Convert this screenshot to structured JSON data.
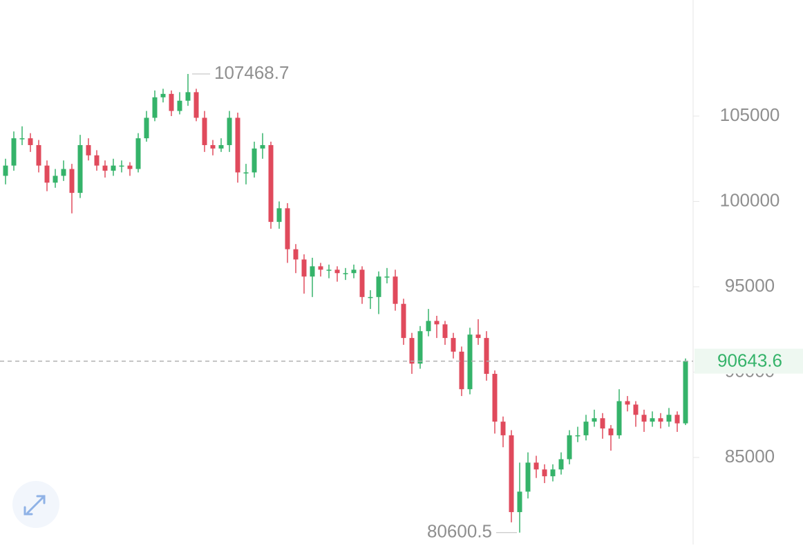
{
  "chart_data": {
    "type": "candlestick",
    "up_color": "#35b36a",
    "down_color": "#e04a5c",
    "ylim": [
      79900,
      111800
    ],
    "yticks": [
      85000,
      90000,
      95000,
      100000,
      105000
    ],
    "open": [
      101500,
      102100,
      103700,
      103700,
      103300,
      102100,
      101100,
      101500,
      101900,
      100500,
      103300,
      102700,
      102100,
      101800,
      102100,
      102100,
      101900,
      103700,
      104900,
      106100,
      106300,
      105300,
      105900,
      106400,
      104900,
      103300,
      103100,
      103300,
      104900,
      101700,
      101700,
      103100,
      103300,
      98800,
      99600,
      97200,
      96600,
      95600,
      96200,
      96000,
      96000,
      95800,
      95800,
      96000,
      94400,
      94400,
      95600,
      95600,
      94000,
      92000,
      90500,
      92400,
      93000,
      92800,
      92000,
      91200,
      89000,
      92200,
      92000,
      89900,
      87100,
      86300,
      81800,
      83000,
      84700,
      84300,
      83900,
      84300,
      84900,
      86300,
      86300,
      87100,
      87300,
      86700,
      86300,
      88300,
      88100,
      87500,
      87100,
      87300,
      87100,
      87500,
      87000
    ],
    "high": [
      102500,
      104100,
      104400,
      104000,
      103600,
      102400,
      101900,
      102400,
      102200,
      103900,
      103700,
      103000,
      102400,
      102500,
      102400,
      102300,
      104000,
      105300,
      106500,
      106600,
      106500,
      106400,
      107468.7,
      106600,
      105300,
      103600,
      103700,
      105300,
      105200,
      102200,
      103500,
      104000,
      103500,
      100000,
      99900,
      97500,
      96900,
      96700,
      96400,
      96300,
      96200,
      96100,
      96300,
      96200,
      94800,
      95900,
      96100,
      96000,
      94300,
      92300,
      92700,
      93700,
      93300,
      93000,
      92300,
      91500,
      92600,
      93100,
      92400,
      90100,
      87400,
      86600,
      84700,
      85300,
      85100,
      84600,
      84600,
      85300,
      86600,
      86800,
      87500,
      87800,
      87600,
      86900,
      89000,
      88600,
      88300,
      87800,
      87700,
      87600,
      87900,
      87700,
      90800
    ],
    "low": [
      101000,
      101800,
      103300,
      102900,
      101700,
      100600,
      100800,
      101200,
      99300,
      100200,
      102400,
      101800,
      101400,
      101500,
      101700,
      101500,
      101700,
      103500,
      104700,
      105800,
      105000,
      105100,
      105600,
      104700,
      102900,
      102700,
      102900,
      102900,
      101100,
      101000,
      101400,
      102500,
      98400,
      98400,
      96400,
      95800,
      94600,
      94400,
      95600,
      95500,
      95300,
      95400,
      95500,
      94000,
      93700,
      93400,
      95200,
      93600,
      91600,
      89900,
      90200,
      92100,
      92000,
      91600,
      90800,
      88600,
      88700,
      91600,
      89500,
      86400,
      85600,
      81200,
      80600.5,
      82600,
      83800,
      83500,
      83600,
      84000,
      84600,
      85900,
      86000,
      86800,
      86100,
      85400,
      86100,
      87700,
      86800,
      86500,
      86800,
      86700,
      86800,
      86500,
      86900
    ],
    "close": [
      102100,
      103700,
      103700,
      103300,
      102100,
      101100,
      101500,
      101900,
      100500,
      103300,
      102700,
      102100,
      101800,
      102100,
      102100,
      101900,
      103700,
      104900,
      106100,
      106300,
      105300,
      105900,
      106400,
      104900,
      103300,
      103100,
      103300,
      104900,
      101700,
      101700,
      103100,
      103300,
      98800,
      99600,
      97200,
      96600,
      95600,
      96200,
      96000,
      96000,
      95800,
      95800,
      96000,
      94400,
      94400,
      95600,
      95600,
      94000,
      92000,
      90500,
      92400,
      93000,
      92800,
      92000,
      91200,
      89000,
      92200,
      92000,
      89900,
      87100,
      86300,
      81800,
      83000,
      84700,
      84300,
      83900,
      84300,
      84900,
      86300,
      86300,
      87100,
      87300,
      86700,
      86300,
      88300,
      88100,
      87500,
      87100,
      87300,
      87100,
      87500,
      87000,
      90643.6
    ],
    "max_label": 107468.7,
    "min_label": 80600.5,
    "last_price": 90643.6
  }
}
